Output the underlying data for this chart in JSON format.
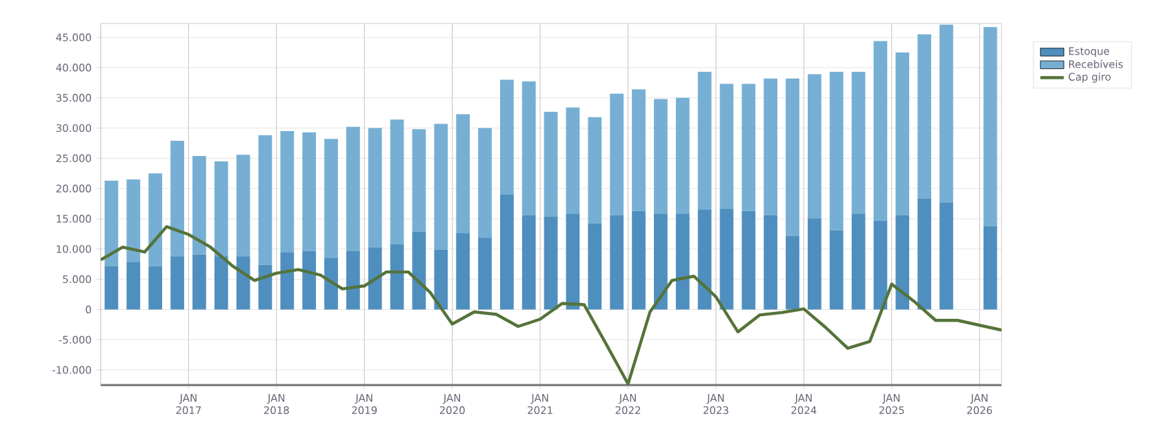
{
  "chart_data": {
    "type": "bar",
    "stacked": true,
    "grid": true,
    "legend": "top right",
    "xlim": [
      "2016-01-01",
      "2026-04-01"
    ],
    "xticks": [
      {
        "value": "2017-01-01",
        "label": "JAN 2017"
      },
      {
        "value": "2018-01-01",
        "label": "JAN 2018"
      },
      {
        "value": "2019-01-01",
        "label": "JAN 2019"
      },
      {
        "value": "2020-01-01",
        "label": "JAN 2020"
      },
      {
        "value": "2021-01-01",
        "label": "JAN 2021"
      },
      {
        "value": "2022-01-01",
        "label": "JAN 2022"
      },
      {
        "value": "2023-01-01",
        "label": "JAN 2023"
      },
      {
        "value": "2024-01-01",
        "label": "JAN 2024"
      },
      {
        "value": "2025-01-01",
        "label": "JAN 2025"
      },
      {
        "value": "2026-01-01",
        "label": "JAN 2026"
      }
    ],
    "ylim": [
      -12500,
      47300
    ],
    "yticks": [
      {
        "value": -10000,
        "label": "-10.000"
      },
      {
        "value": -5000,
        "label": "-5.000"
      },
      0,
      {
        "value": 5000,
        "label": "5.000"
      },
      {
        "value": 10000,
        "label": "10.000"
      },
      {
        "value": 15000,
        "label": "15.000"
      },
      {
        "value": 20000,
        "label": "20.000"
      },
      {
        "value": 25000,
        "label": "25.000"
      },
      {
        "value": 30000,
        "label": "30.000"
      },
      {
        "value": 35000,
        "label": "35.000"
      },
      {
        "value": 40000,
        "label": "40.000"
      },
      {
        "value": 45000,
        "label": "45.000"
      }
    ],
    "x": [
      "2016-02-15",
      "2016-05-15",
      "2016-08-15",
      "2016-11-15",
      "2017-02-15",
      "2017-05-15",
      "2017-08-15",
      "2017-11-15",
      "2018-02-15",
      "2018-05-15",
      "2018-08-15",
      "2018-11-15",
      "2019-02-15",
      "2019-05-15",
      "2019-08-15",
      "2019-11-15",
      "2020-02-15",
      "2020-05-15",
      "2020-08-15",
      "2020-11-15",
      "2021-02-15",
      "2021-05-15",
      "2021-08-15",
      "2021-11-15",
      "2022-02-15",
      "2022-05-15",
      "2022-08-15",
      "2022-11-15",
      "2023-02-15",
      "2023-05-15",
      "2023-08-15",
      "2023-11-15",
      "2024-02-15",
      "2024-05-15",
      "2024-08-15",
      "2024-11-15",
      "2025-02-15",
      "2025-05-15",
      "2025-08-15",
      "2025-11-15",
      "2026-02-15"
    ],
    "series": [
      {
        "name": "Estoque",
        "color": "#4f8fbf",
        "values": [
          7200,
          7800,
          7200,
          8800,
          9100,
          8800,
          8800,
          7400,
          9400,
          9700,
          8500,
          9700,
          10300,
          10800,
          12900,
          9900,
          12600,
          11900,
          19000,
          15600,
          15400,
          15800,
          14200,
          15600,
          16300,
          15800,
          15800,
          16500,
          16700,
          16300,
          15600,
          12200,
          15100,
          13100,
          15800,
          14700,
          15600,
          18300,
          17700,
          null,
          13800
        ]
      },
      {
        "name": "Recebíveis",
        "color": "#76afd3",
        "values": [
          14100,
          13700,
          15300,
          19100,
          16300,
          15700,
          16800,
          21400,
          20100,
          19600,
          19700,
          20500,
          19700,
          20600,
          16900,
          20800,
          19700,
          18100,
          19000,
          22100,
          17300,
          17600,
          17600,
          20100,
          20100,
          19000,
          19200,
          22800,
          20600,
          21000,
          22600,
          26000,
          23800,
          26200,
          23500,
          29700,
          26900,
          27200,
          29400,
          null,
          32900
        ]
      },
      {
        "name": "Cap giro",
        "type": "line",
        "color": "#55733a",
        "x": [
          "2016-01-01",
          "2016-04-01",
          "2016-07-01",
          "2016-10-01",
          "2017-01-01",
          "2017-04-01",
          "2017-07-01",
          "2017-10-01",
          "2018-01-01",
          "2018-04-01",
          "2018-07-01",
          "2018-10-01",
          "2019-01-01",
          "2019-04-01",
          "2019-07-01",
          "2019-10-01",
          "2020-01-01",
          "2020-04-01",
          "2020-07-01",
          "2020-10-01",
          "2021-01-01",
          "2021-04-01",
          "2021-07-01",
          "2021-10-01",
          "2022-01-01",
          "2022-04-01",
          "2022-07-01",
          "2022-10-01",
          "2023-01-01",
          "2023-04-01",
          "2023-07-01",
          "2023-10-01",
          "2024-01-01",
          "2024-04-01",
          "2024-07-01",
          "2024-10-01",
          "2025-01-01",
          "2025-04-01",
          "2025-07-01",
          "2025-10-01",
          "2026-01-01",
          "2026-04-01"
        ],
        "values": [
          8200,
          10300,
          9500,
          13700,
          12400,
          10300,
          7200,
          4800,
          6000,
          6600,
          5700,
          3400,
          3900,
          6200,
          6200,
          2800,
          -2400,
          -400,
          -800,
          -2800,
          -1600,
          1000,
          800,
          -5700,
          -12300,
          -400,
          4800,
          5500,
          2100,
          -3700,
          -900,
          -500,
          100,
          -3000,
          -6400,
          -5300,
          4200,
          1400,
          -1800,
          -1800,
          -2600,
          -3400
        ]
      }
    ]
  }
}
